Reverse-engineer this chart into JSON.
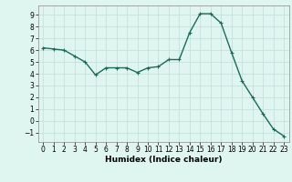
{
  "x": [
    0,
    1,
    2,
    3,
    4,
    5,
    6,
    7,
    8,
    9,
    10,
    11,
    12,
    13,
    14,
    15,
    16,
    17,
    18,
    19,
    20,
    21,
    22,
    23
  ],
  "y": [
    6.2,
    6.1,
    6.0,
    5.5,
    5.0,
    3.9,
    4.5,
    4.5,
    4.5,
    4.1,
    4.5,
    4.6,
    5.2,
    5.2,
    7.5,
    9.1,
    9.1,
    8.3,
    5.8,
    3.4,
    2.0,
    0.6,
    -0.7,
    -1.3
  ],
  "line_color": "#1a6b5a",
  "marker": "+",
  "marker_size": 3,
  "bg_color": "#dff5f0",
  "grid_color": "#c0ddd8",
  "xlabel": "Humidex (Indice chaleur)",
  "ylim": [
    -1.8,
    9.8
  ],
  "xlim": [
    -0.5,
    23.5
  ],
  "yticks": [
    -1,
    0,
    1,
    2,
    3,
    4,
    5,
    6,
    7,
    8,
    9
  ],
  "xticks": [
    0,
    1,
    2,
    3,
    4,
    5,
    6,
    7,
    8,
    9,
    10,
    11,
    12,
    13,
    14,
    15,
    16,
    17,
    18,
    19,
    20,
    21,
    22,
    23
  ],
  "tick_label_fontsize": 5.5,
  "xlabel_fontsize": 6.5,
  "line_width": 1.0
}
